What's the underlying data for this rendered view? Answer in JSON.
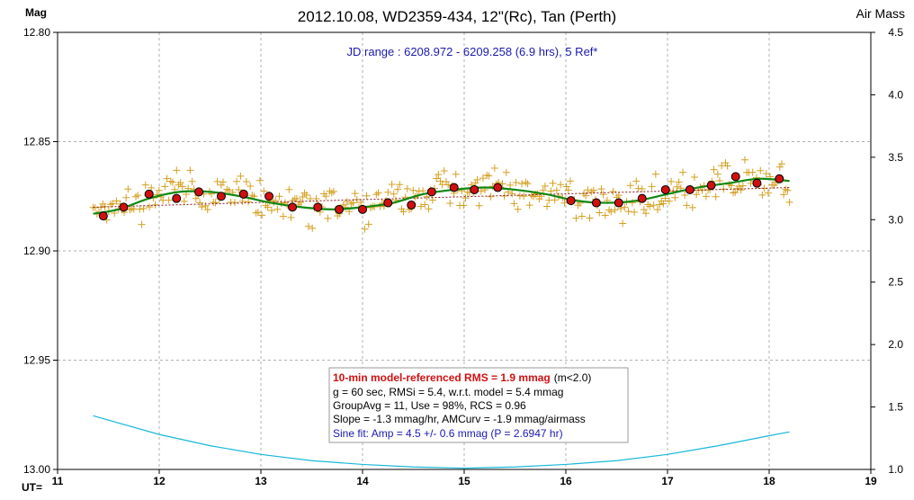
{
  "chart_data": {
    "type": "scatter",
    "title": "2012.10.08, WD2359-434, 12\"(Rc), Tan (Perth)",
    "ylabel": "Mag",
    "y2label": "Air Mass",
    "xlabel": "UT=",
    "xlim": [
      11,
      19
    ],
    "ylim": [
      12.8,
      13.0
    ],
    "y_inverted": true,
    "y2lim": [
      1.0,
      4.5
    ],
    "grid": true,
    "x_ticks": [
      "11",
      "12",
      "13",
      "14",
      "15",
      "16",
      "17",
      "18",
      "19"
    ],
    "y_ticks": [
      "12.80",
      "12.85",
      "12.90",
      "12.95",
      "13.00"
    ],
    "y2_ticks": [
      "1.0",
      "1.5",
      "2.0",
      "2.5",
      "3.0",
      "3.5",
      "4.0",
      "4.5"
    ],
    "annotation": "JD range : 6208.972 - 6209.258 (6.9 hrs), 5 Ref*",
    "stats": {
      "rms_red": "10-min model-referenced RMS = 1.9 mmag",
      "rms_suffix": "(m<2.0)",
      "line2": "g = 60 sec, RMSi = 5.4, w.r.t. model = 5.4 mmag",
      "line3": "GroupAvg  = 11, Use = 98%, RCS = 0.96",
      "line4": "Slope = -1.3 mmag/hr, AMCurv = -1.9 mmag/airmass",
      "line5": "Sine fit: Amp = 4.5 +/- 0.6 mmag (P = 2.6947  hr)"
    },
    "series": [
      {
        "kind": "group_average",
        "color": "#d01010",
        "x": [
          11.45,
          11.65,
          11.9,
          12.17,
          12.39,
          12.61,
          12.83,
          13.08,
          13.31,
          13.56,
          13.77,
          14.0,
          14.25,
          14.48,
          14.68,
          14.9,
          15.1,
          15.33,
          16.05,
          16.3,
          16.52,
          16.75,
          16.98,
          17.22,
          17.43,
          17.67,
          17.88,
          18.1
        ],
        "y": [
          12.884,
          12.88,
          12.874,
          12.876,
          12.873,
          12.875,
          12.874,
          12.875,
          12.88,
          12.88,
          12.881,
          12.881,
          12.878,
          12.879,
          12.873,
          12.871,
          12.872,
          12.871,
          12.877,
          12.878,
          12.878,
          12.876,
          12.872,
          12.872,
          12.87,
          12.866,
          12.869,
          12.867
        ]
      },
      {
        "kind": "model_fit",
        "color": "#118811",
        "x": [
          11.35,
          11.6,
          11.9,
          12.2,
          12.5,
          12.8,
          13.1,
          13.4,
          13.7,
          14.0,
          14.3,
          14.6,
          14.9,
          15.2,
          15.5,
          15.8,
          16.1,
          16.4,
          16.7,
          17.0,
          17.3,
          17.6,
          17.9,
          18.2
        ],
        "y": [
          12.883,
          12.881,
          12.876,
          12.873,
          12.873,
          12.875,
          12.878,
          12.88,
          12.881,
          12.88,
          12.878,
          12.874,
          12.872,
          12.871,
          12.872,
          12.874,
          12.877,
          12.878,
          12.877,
          12.874,
          12.871,
          12.869,
          12.867,
          12.868
        ]
      },
      {
        "kind": "trend",
        "color": "#8b1a1a",
        "x": [
          11.35,
          18.2
        ],
        "y": [
          12.88,
          12.871
        ]
      },
      {
        "kind": "air_mass",
        "color": "#18b8d8",
        "x": [
          11.35,
          12.0,
          12.5,
          13.0,
          13.5,
          14.0,
          14.5,
          15.0,
          15.5,
          16.0,
          16.5,
          17.0,
          17.5,
          18.0,
          18.2
        ],
        "y": [
          1.43,
          1.28,
          1.19,
          1.12,
          1.07,
          1.04,
          1.02,
          1.01,
          1.02,
          1.04,
          1.07,
          1.12,
          1.19,
          1.27,
          1.3
        ]
      }
    ]
  }
}
